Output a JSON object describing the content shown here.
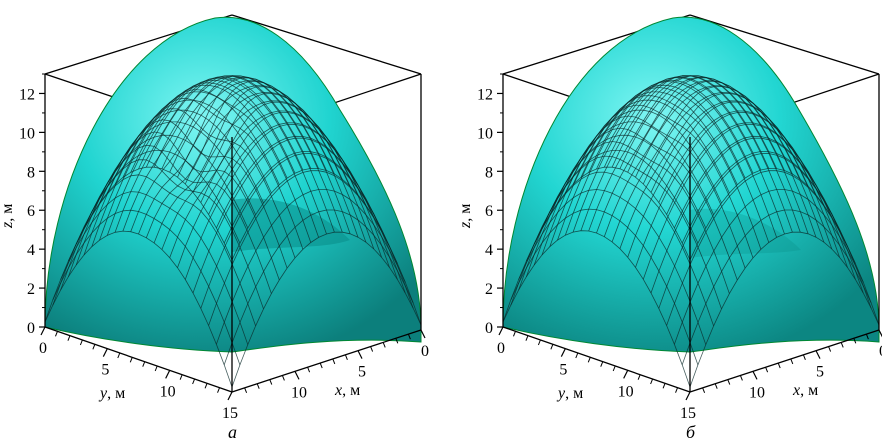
{
  "chart_data": [
    {
      "type": "surface3d",
      "caption": "а",
      "zlabel_var": "z",
      "zlabel_unit": ", м",
      "xlabel_var": "x",
      "xlabel_unit": ", м",
      "ylabel_var": "y",
      "ylabel_unit": ", м",
      "z_ticks": [
        "0",
        "2",
        "4",
        "6",
        "8",
        "10",
        "12"
      ],
      "x_ticks": [
        "0",
        "5",
        "10"
      ],
      "y_ticks": [
        "0",
        "5",
        "10",
        "15"
      ],
      "zlim": [
        0,
        13
      ],
      "xlim": [
        0,
        15
      ],
      "ylim": [
        0,
        15
      ],
      "peak_z": 12.8,
      "dip_depth": 0.16,
      "surface_color": "#1fd3d0",
      "grid_color": "#0b2b2b"
    },
    {
      "type": "surface3d",
      "caption": "б",
      "zlabel_var": "z",
      "zlabel_unit": ", м",
      "xlabel_var": "x",
      "xlabel_unit": ", м",
      "ylabel_var": "y",
      "ylabel_unit": ", м",
      "z_ticks": [
        "0",
        "2",
        "4",
        "6",
        "8",
        "10",
        "12"
      ],
      "x_ticks": [
        "0",
        "5",
        "10"
      ],
      "y_ticks": [
        "0",
        "5",
        "10",
        "15"
      ],
      "zlim": [
        0,
        13
      ],
      "xlim": [
        0,
        15
      ],
      "ylim": [
        0,
        15
      ],
      "peak_z": 12.8,
      "dip_depth": 0.06,
      "surface_color": "#1fd3d0",
      "grid_color": "#0b2b2b"
    }
  ]
}
